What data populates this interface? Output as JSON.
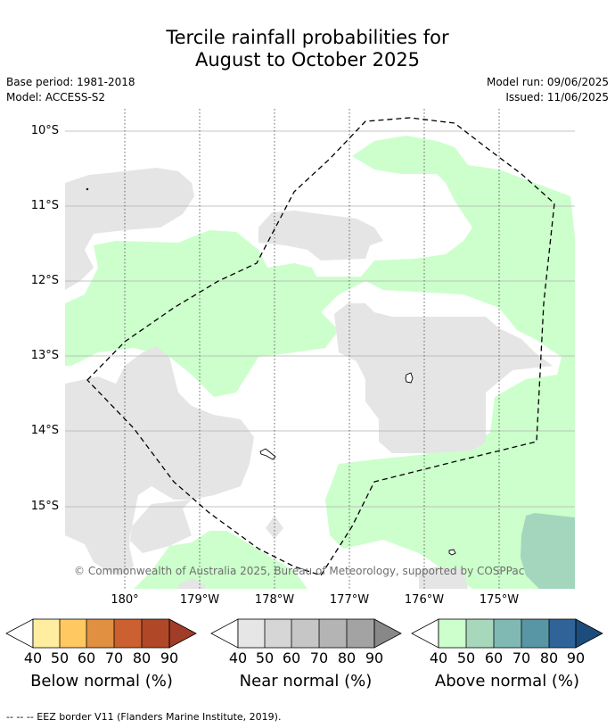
{
  "header": {
    "title_line1": "Tercile rainfall probabilities for",
    "title_line2": "August to October 2025",
    "base_period": "Base period: 1981-2018",
    "model": "Model: ACCESS-S2",
    "model_run": "Model run: 09/06/2025",
    "issued": "Issued: 11/06/2025"
  },
  "map": {
    "lat_labels": [
      "10°S",
      "11°S",
      "12°S",
      "13°S",
      "14°S",
      "15°S"
    ],
    "lon_labels": [
      "180°",
      "179°W",
      "178°W",
      "177°W",
      "176°W",
      "175°W"
    ],
    "copyright": "© Commonwealth of Australia 2025, Bureau of Meteorology, supported by COSPPac",
    "colors": {
      "near_normal_40": "#e5e5e5",
      "above_normal_40": "#ccffcc",
      "above_normal_50": "#a3d6bd"
    }
  },
  "colorbars": [
    {
      "caption": "Below normal (%)",
      "ticks": [
        "40",
        "50",
        "60",
        "70",
        "80",
        "90"
      ],
      "colors": [
        "#ffeea0",
        "#ffc860",
        "#e09040",
        "#cc6030",
        "#b04828",
        "#a03c28"
      ]
    },
    {
      "caption": "Near normal (%)",
      "ticks": [
        "40",
        "50",
        "60",
        "70",
        "80",
        "90"
      ],
      "colors": [
        "#e6e6e6",
        "#d6d6d6",
        "#c6c6c6",
        "#b4b4b4",
        "#a3a3a3",
        "#888888"
      ]
    },
    {
      "caption": "Above normal (%)",
      "ticks": [
        "40",
        "50",
        "60",
        "70",
        "80",
        "90"
      ],
      "colors": [
        "#ccffcc",
        "#a8d8bc",
        "#80b8b4",
        "#5896a6",
        "#306499",
        "#1c4c7c"
      ]
    }
  ],
  "footer": {
    "legend_line": "--  --  -- EEZ border V11 (Flanders Marine Institute, 2019)."
  }
}
